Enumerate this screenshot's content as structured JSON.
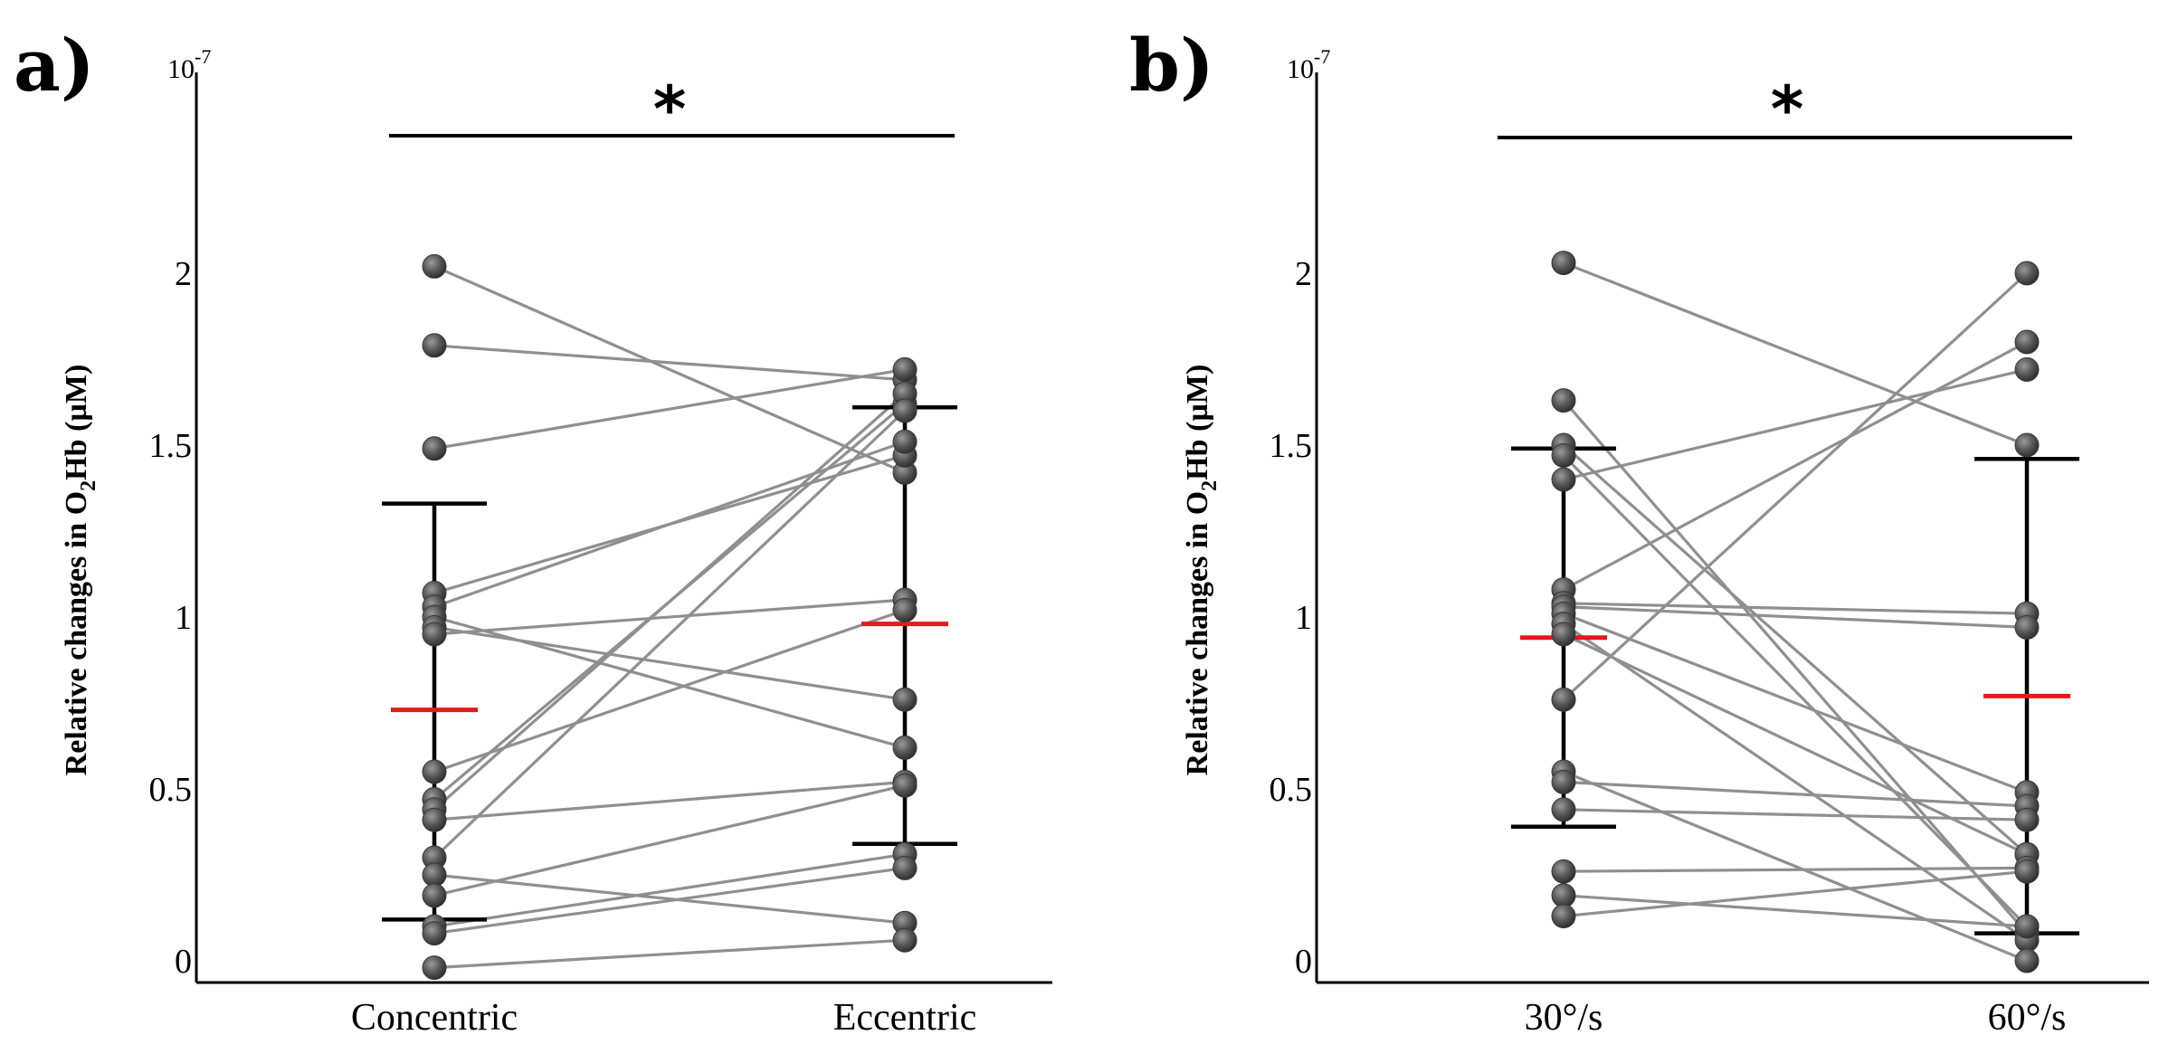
{
  "chart_data": [
    {
      "panel": "a)",
      "type": "scatter",
      "exponent": "10-7",
      "exponent_base": "10",
      "exponent_power": "-7",
      "ylabel": "Relative changes in O2Hb (µM)",
      "ylabel_parts": [
        "Relative changes in O",
        "2",
        "Hb (µM)"
      ],
      "yticks": [
        "0",
        "0.5",
        "1",
        "1.5",
        "2"
      ],
      "ylim": [
        -0.05,
        2.6
      ],
      "categories": [
        "Concentric",
        "Eccentric"
      ],
      "significance": "*",
      "pairs": [
        [
          2.02,
          1.42
        ],
        [
          1.79,
          1.69
        ],
        [
          1.49,
          1.72
        ],
        [
          1.07,
          1.47
        ],
        [
          1.03,
          1.51
        ],
        [
          1.0,
          0.62
        ],
        [
          0.97,
          0.76
        ],
        [
          0.95,
          1.05
        ],
        [
          0.55,
          1.02
        ],
        [
          0.47,
          1.62
        ],
        [
          0.44,
          1.65
        ],
        [
          0.41,
          0.52
        ],
        [
          0.3,
          1.6
        ],
        [
          0.25,
          0.11
        ],
        [
          0.19,
          0.51
        ],
        [
          0.1,
          0.31
        ],
        [
          0.08,
          0.27
        ],
        [
          -0.02,
          0.06
        ]
      ],
      "mean": [
        0.73,
        0.98
      ],
      "err_upper": [
        1.33,
        1.61
      ],
      "err_lower": [
        0.12,
        0.34
      ],
      "colors": {
        "line": "#8f8f8f",
        "point": "#4d4d4d",
        "mean": "#e31a1c",
        "error": "#000000"
      }
    },
    {
      "panel": "b)",
      "type": "scatter",
      "exponent": "10-7",
      "exponent_base": "10",
      "exponent_power": "-7",
      "ylabel": "Relative changes in O2Hb (µM)",
      "ylabel_parts": [
        "Relative changes in O",
        "2",
        "Hb (µM)"
      ],
      "yticks": [
        "0",
        "0.5",
        "1",
        "1.5",
        "2"
      ],
      "ylim": [
        -0.05,
        2.6
      ],
      "categories": [
        "30°/s",
        "60°/s"
      ],
      "significance": "*",
      "pairs": [
        [
          2.03,
          1.5
        ],
        [
          1.63,
          0.08
        ],
        [
          1.5,
          0.31
        ],
        [
          1.47,
          0.1
        ],
        [
          1.4,
          1.72
        ],
        [
          1.08,
          1.8
        ],
        [
          1.04,
          1.01
        ],
        [
          1.03,
          0.97
        ],
        [
          1.01,
          0.49
        ],
        [
          0.98,
          0.06
        ],
        [
          0.95,
          0.31
        ],
        [
          0.76,
          2.0
        ],
        [
          0.55,
          0.0
        ],
        [
          0.52,
          0.45
        ],
        [
          0.44,
          0.41
        ],
        [
          0.26,
          0.27
        ],
        [
          0.19,
          0.1
        ],
        [
          0.13,
          0.26
        ]
      ],
      "mean": [
        0.94,
        0.77
      ],
      "err_upper": [
        1.49,
        1.46
      ],
      "err_lower": [
        0.39,
        0.08
      ],
      "colors": {
        "line": "#8f8f8f",
        "point": "#4d4d4d",
        "mean": "#e31a1c",
        "error": "#000000"
      }
    }
  ]
}
